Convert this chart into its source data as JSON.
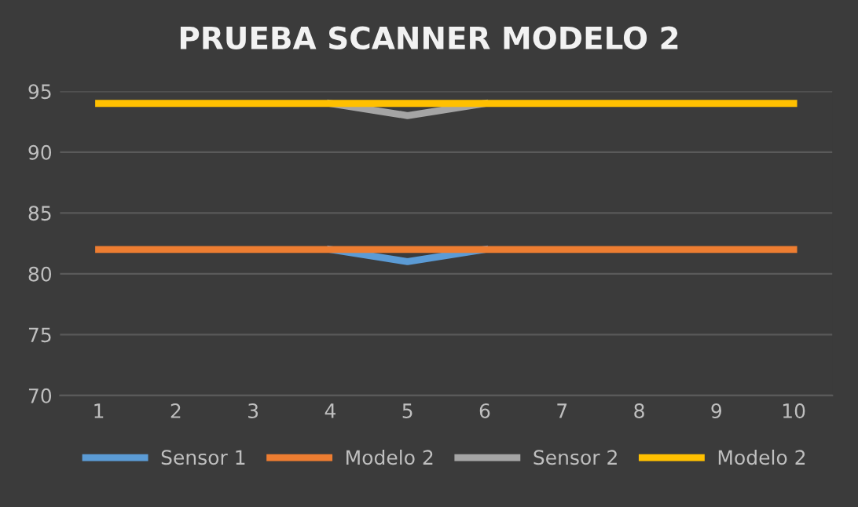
{
  "chart_data": {
    "type": "line",
    "title": "PRUEBA SCANNER MODELO 2",
    "categories": [
      "1",
      "2",
      "3",
      "4",
      "5",
      "6",
      "7",
      "8",
      "9",
      "10"
    ],
    "series": [
      {
        "name": "Sensor 1",
        "color": "#5b9bd5",
        "values": [
          null,
          null,
          null,
          82,
          81,
          82,
          null,
          null,
          null,
          null
        ]
      },
      {
        "name": "Modelo 2",
        "color": "#ed7d31",
        "values": [
          82,
          82,
          82,
          82,
          82,
          82,
          82,
          82,
          82,
          82
        ]
      },
      {
        "name": "Sensor 2",
        "color": "#a5a5a5",
        "values": [
          null,
          null,
          null,
          94,
          93,
          94,
          null,
          null,
          null,
          null
        ]
      },
      {
        "name": "Modelo 2",
        "color": "#ffc000",
        "values": [
          94,
          94,
          94,
          94,
          94,
          94,
          94,
          94,
          94,
          94
        ]
      }
    ],
    "ylim": [
      70,
      95
    ],
    "yticks": [
      70,
      75,
      80,
      85,
      90,
      95
    ],
    "grid": "y",
    "legend": "bottom",
    "marker": "none",
    "line_style": "solid"
  }
}
